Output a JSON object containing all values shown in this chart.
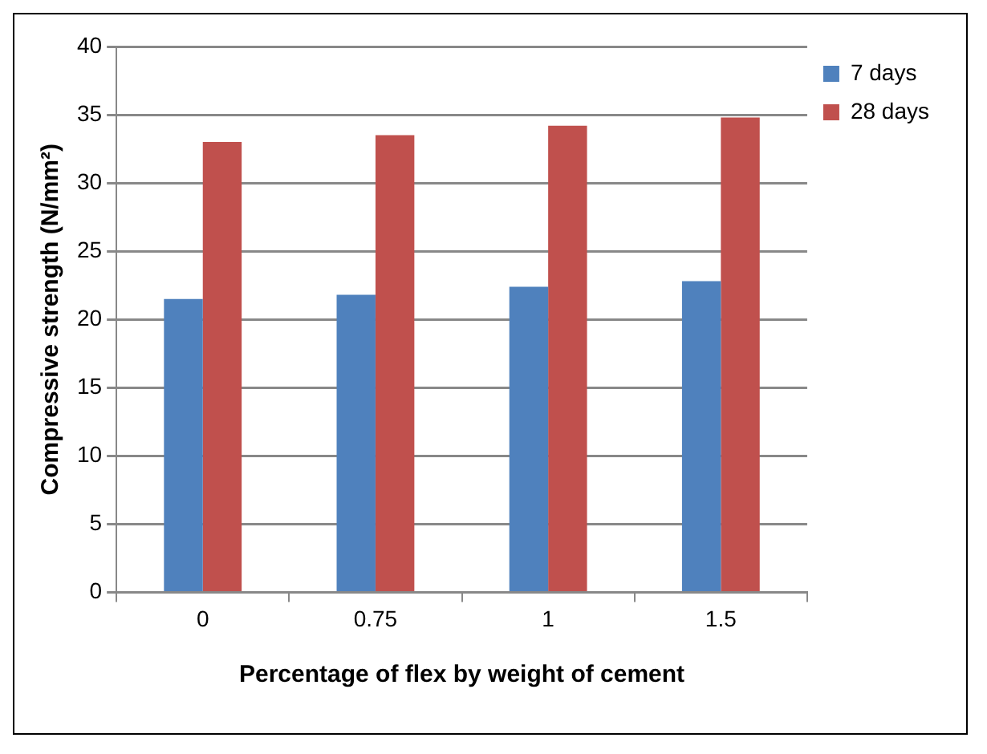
{
  "chart_data": {
    "type": "bar",
    "xlabel": "Percentage of flex by weight of cement",
    "ylabel": "Compressive strength (N/mm²)",
    "categories": [
      "0",
      "0.75",
      "1",
      "1.5"
    ],
    "series": [
      {
        "name": "7 days",
        "color": "#4f81bd",
        "values": [
          21.5,
          21.8,
          22.4,
          22.8
        ]
      },
      {
        "name": "28 days",
        "color": "#c0504d",
        "values": [
          33,
          33.5,
          34.2,
          34.8
        ]
      }
    ],
    "ylim": [
      0,
      40
    ],
    "yticks": [
      0,
      5,
      10,
      15,
      20,
      25,
      30,
      35,
      40
    ],
    "grid": "y",
    "legend": "right"
  }
}
